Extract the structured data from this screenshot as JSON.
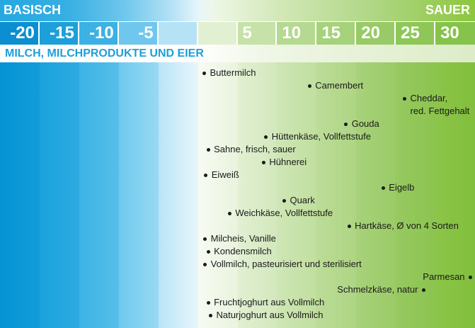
{
  "colors": {
    "basisch": "#25a8e0",
    "sauer": "#8dc63f",
    "title": "#1d9fd9",
    "point": "#1a1a1a"
  },
  "chart_data": {
    "type": "scatter",
    "scale_labels": {
      "left": "BASISCH",
      "right": "SAUER"
    },
    "title": "MILCH, MILCHPRODUKTE UND EIER",
    "xticks": [
      "-20",
      "-15",
      "-10",
      "-5",
      "5",
      "10",
      "15",
      "20",
      "25",
      "30"
    ],
    "xlim": [
      -25,
      35
    ],
    "grid": false,
    "points": [
      {
        "label": "Buttermilch",
        "x": 0.8
      },
      {
        "label": "Camembert",
        "x": 14.1
      },
      {
        "label": "Cheddar,\nred. Fettgehalt",
        "x": 26.1
      },
      {
        "label": "Gouda",
        "x": 18.7
      },
      {
        "label": "Hüttenkäse, Vollfettstufe",
        "x": 8.6
      },
      {
        "label": "Sahne, frisch, sauer",
        "x": 1.3
      },
      {
        "label": "Hühnerei",
        "x": 8.3
      },
      {
        "label": "Eiweiß",
        "x": 1.0
      },
      {
        "label": "Eigelb",
        "x": 23.4
      },
      {
        "label": "Quark",
        "x": 10.9
      },
      {
        "label": "Weichkäse, Vollfettstufe",
        "x": 4.0
      },
      {
        "label": "Hartkäse, Ø von 4 Sorten",
        "x": 19.1
      },
      {
        "label": "Milcheis, Vanille",
        "x": 0.9
      },
      {
        "label": "Kondensmilch",
        "x": 1.3
      },
      {
        "label": "Vollmilch, pasteurisiert und sterilisiert",
        "x": 0.9
      },
      {
        "label": "Parmesan",
        "x": 34.4
      },
      {
        "label": "Schmelzkäse, natur",
        "x": 28.5
      },
      {
        "label": "Fruchtjoghurt aus Vollmilch",
        "x": 1.3
      },
      {
        "label": "Naturjoghurt aus Vollmilch",
        "x": 1.6
      }
    ]
  }
}
